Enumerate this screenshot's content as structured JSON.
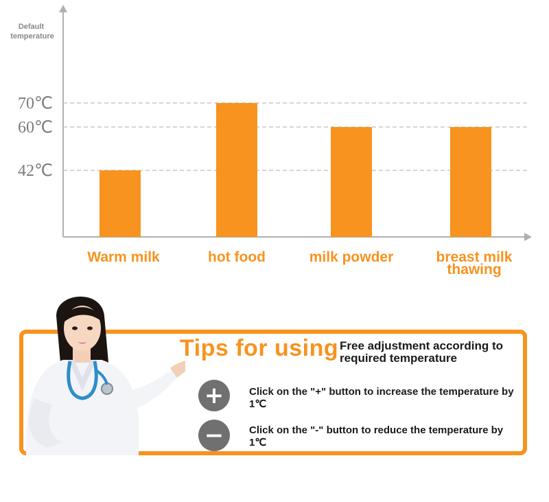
{
  "chart_data": {
    "type": "bar",
    "ylabel": "Default\ntemperature",
    "categories": [
      "Warm milk",
      "hot food",
      "milk powder",
      "breast milk thawing"
    ],
    "values": [
      42,
      70,
      60,
      60
    ],
    "y_ticks": [
      {
        "value": 42,
        "label": "42℃"
      },
      {
        "value": 60,
        "label": "60℃"
      },
      {
        "value": 70,
        "label": "70℃"
      }
    ],
    "unit": "℃",
    "grid": "dashed horizontal at tick values",
    "bar_color": "#f7931e",
    "label_color": "#f7931e"
  },
  "tips": {
    "title": "Tips for using",
    "subtitle": "Free adjustment according to required temperature",
    "items": [
      {
        "icon": "plus-icon",
        "text": "Click on the \"+\" button to increase the temperature by 1℃"
      },
      {
        "icon": "minus-icon",
        "text": "Click on the \"-\" button to reduce the temperature by 1℃"
      }
    ]
  },
  "colors": {
    "accent": "#f7931e",
    "icon_circle": "#707070",
    "axis": "#b0b0b0"
  }
}
